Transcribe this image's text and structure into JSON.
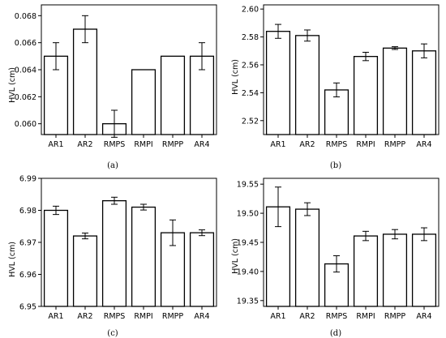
{
  "chart_data": [
    {
      "panel": "(a)",
      "type": "bar",
      "ylabel": "HVL (cm)",
      "categories": [
        "AR1",
        "AR2",
        "RMPS",
        "RMPI",
        "RMPP",
        "AR4"
      ],
      "values": [
        0.065,
        0.067,
        0.06,
        0.064,
        0.065,
        0.065
      ],
      "errors": [
        0.001,
        0.001,
        0.001,
        0,
        0,
        0.001
      ],
      "ylim": [
        0.0592,
        0.0688
      ],
      "yticks": [
        "0.060",
        "0.062",
        "0.064",
        "0.066",
        "0.068"
      ],
      "ytick_values": [
        0.06,
        0.062,
        0.064,
        0.066,
        0.068
      ],
      "grid": false
    },
    {
      "panel": "(b)",
      "type": "bar",
      "ylabel": "HVL (cm)",
      "categories": [
        "AR1",
        "AR2",
        "RMPS",
        "RMPI",
        "RMPP",
        "AR4"
      ],
      "values": [
        2.584,
        2.581,
        2.542,
        2.566,
        2.572,
        2.57
      ],
      "errors": [
        0.005,
        0.004,
        0.005,
        0.003,
        0.001,
        0.005
      ],
      "ylim": [
        2.51,
        2.603
      ],
      "yticks": [
        "2.52",
        "2.54",
        "2.56",
        "2.58",
        "2.60"
      ],
      "ytick_values": [
        2.52,
        2.54,
        2.56,
        2.58,
        2.6
      ],
      "grid": false
    },
    {
      "panel": "(c)",
      "type": "bar",
      "ylabel": "HVL (cm)",
      "categories": [
        "AR1",
        "AR2",
        "RMPS",
        "RMPI",
        "RMPP",
        "AR4"
      ],
      "values": [
        6.98,
        6.972,
        6.983,
        6.981,
        6.973,
        6.973
      ],
      "errors": [
        0.0013,
        0.0009,
        0.0011,
        0.0009,
        0.004,
        0.0009
      ],
      "ylim": [
        6.95,
        6.99
      ],
      "yticks": [
        "6.95",
        "6.96",
        "6.97",
        "6.98",
        "6.99"
      ],
      "ytick_values": [
        6.95,
        6.96,
        6.97,
        6.98,
        6.99
      ],
      "grid": false
    },
    {
      "panel": "(d)",
      "type": "bar",
      "ylabel": "HVL (cm)",
      "categories": [
        "AR1",
        "AR2",
        "RMPS",
        "RMPI",
        "RMPP",
        "AR4"
      ],
      "values": [
        19.511,
        19.507,
        19.413,
        19.461,
        19.464,
        19.464
      ],
      "errors": [
        0.034,
        0.011,
        0.014,
        0.008,
        0.008,
        0.011
      ],
      "ylim": [
        19.34,
        19.56
      ],
      "yticks": [
        "19.35",
        "19.40",
        "19.45",
        "19.50",
        "19.55"
      ],
      "ytick_values": [
        19.35,
        19.4,
        19.45,
        19.5,
        19.55
      ],
      "grid": false
    }
  ]
}
